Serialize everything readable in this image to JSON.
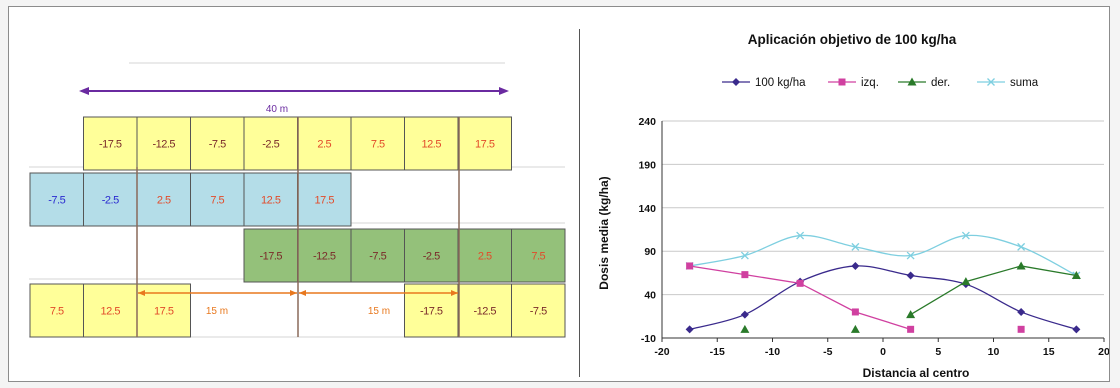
{
  "diagram": {
    "total_width_label": "40 m",
    "gap_label_left": "15 m",
    "gap_label_right": "15 m",
    "colors": {
      "yellow": "#ffff99",
      "blue": "#b4dde8",
      "green": "#94c17a",
      "text_negative": "#7a2a2a",
      "text_positive": "#e24b2a",
      "text_blue_negative": "#2a2ad0",
      "arrow_purple": "#6a2aa0",
      "arrow_orange": "#e8781e",
      "axis_line": "#8a6a5a"
    },
    "rows": [
      {
        "color": "yellow",
        "start_col": 1,
        "cells": [
          "-17.5",
          "-12.5",
          "-7.5",
          "-2.5",
          "2.5",
          "7.5",
          "12.5",
          "17.5"
        ]
      },
      {
        "color": "blue",
        "start_col": 0,
        "cells": [
          "-7.5",
          "-2.5",
          "2.5",
          "7.5",
          "12.5",
          "17.5"
        ]
      },
      {
        "color": "green",
        "start_col": 4,
        "cells": [
          "-17.5",
          "-12.5",
          "-7.5",
          "-2.5",
          "2.5",
          "7.5"
        ]
      },
      {
        "color": "yellow",
        "start_col": 0,
        "cells": [
          "7.5",
          "12.5",
          "17.5"
        ]
      },
      {
        "color": "yellow",
        "start_col": 7,
        "cells": [
          "-17.5",
          "-12.5",
          "-7.5"
        ]
      }
    ]
  },
  "chart_data": {
    "type": "line",
    "title": "Aplicación objetivo de 100 kg/ha",
    "xlabel": "Distancia al centro",
    "ylabel": "Dosis media (kg/ha)",
    "xlim": [
      -20,
      20
    ],
    "ylim": [
      -10,
      240
    ],
    "xticks": [
      -20,
      -15,
      -10,
      -5,
      0,
      5,
      10,
      15,
      20
    ],
    "yticks": [
      -10,
      40,
      90,
      140,
      190,
      240
    ],
    "grid": "horizontal",
    "legend_position": "top",
    "series": [
      {
        "name": "100 kg/ha",
        "color": "#3a2a8c",
        "marker": "diamond",
        "smooth": true,
        "x": [
          -17.5,
          -12.5,
          -7.5,
          -2.5,
          2.5,
          7.5,
          12.5,
          17.5
        ],
        "y": [
          0,
          17,
          55,
          73,
          62,
          52,
          20,
          0
        ]
      },
      {
        "name": "izq.",
        "color": "#d040a0",
        "marker": "square",
        "smooth": false,
        "x": [
          -17.5,
          -12.5,
          -7.5,
          -2.5,
          2.5
        ],
        "y": [
          73,
          63,
          53,
          20,
          0
        ]
      },
      {
        "name": "der.",
        "color": "#2a7a2a",
        "marker": "triangle",
        "smooth": false,
        "x": [
          2.5,
          7.5,
          12.5,
          17.5
        ],
        "y": [
          17,
          55,
          73,
          62
        ]
      },
      {
        "name": "suma",
        "color": "#7ecfe0",
        "marker": "x",
        "smooth": true,
        "x": [
          -17.5,
          -12.5,
          -7.5,
          -2.5,
          2.5,
          7.5,
          12.5,
          17.5
        ],
        "y": [
          73,
          85,
          108,
          95,
          85,
          108,
          95,
          62
        ]
      }
    ],
    "extra_points": [
      {
        "series": "izq.",
        "x": 12.5,
        "y": 0
      },
      {
        "series": "der.",
        "x": -12.5,
        "y": 0
      },
      {
        "series": "der.",
        "x": -2.5,
        "y": 0
      }
    ]
  }
}
